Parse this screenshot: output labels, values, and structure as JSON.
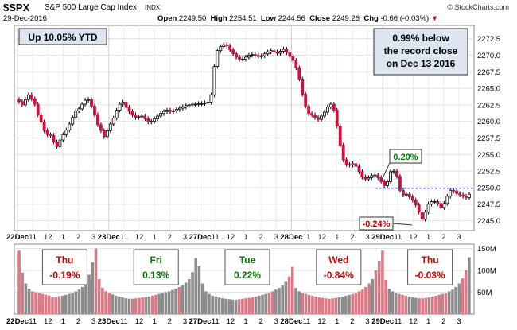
{
  "header": {
    "symbol": "$SPX",
    "name": "S&P 500 Large Cap Index",
    "exchange": "INDX",
    "watermark": "© StockCharts.com",
    "date": "29-Dec-2016",
    "open_label": "Open",
    "open": "2249.50",
    "high_label": "High",
    "high": "2254.51",
    "low_label": "Low",
    "low": "2244.56",
    "close_label": "Close",
    "close": "2249.26",
    "chg_label": "Chg",
    "chg": "-0.66 (-0.03%)",
    "chg_arrow": "▼"
  },
  "annotations": {
    "ytd": "Up 10.05% YTD",
    "record": [
      "0.99% below",
      "the record close",
      "on Dec 13 2016"
    ],
    "high_pct": "0.20%",
    "low_pct": "-0.24%"
  },
  "daily": [
    {
      "day": "Thu",
      "pct": "-0.19%",
      "color": "#cc0000"
    },
    {
      "day": "Fri",
      "pct": "0.13%",
      "color": "#007700"
    },
    {
      "day": "Tue",
      "pct": "0.22%",
      "color": "#007700"
    },
    {
      "day": "Wed",
      "pct": "-0.84%",
      "color": "#cc0000"
    },
    {
      "day": "Thu",
      "pct": "-0.03%",
      "color": "#cc0000"
    }
  ],
  "chart_data": {
    "type": "candlestick",
    "ylim": [
      2243.5,
      2274.5
    ],
    "y_ticks": [
      2245.0,
      2247.5,
      2250.0,
      2252.5,
      2255.0,
      2257.5,
      2260.0,
      2262.5,
      2265.0,
      2267.5,
      2270.0,
      2272.5
    ],
    "record_line": 2249.9,
    "x_tick_labels": [
      "22Dec",
      "11",
      "12",
      "1",
      "2",
      "3",
      "23Dec",
      "11",
      "12",
      "1",
      "2",
      "3",
      "27Dec",
      "11",
      "12",
      "1",
      "2",
      "3",
      "28Dec",
      "11",
      "12",
      "1",
      "2",
      "3",
      "29Dec",
      "11",
      "12",
      "1",
      "2",
      "3"
    ],
    "closes": [
      2263.0,
      2262.5,
      2263.3,
      2264.0,
      2263.4,
      2262.6,
      2261.0,
      2259.9,
      2258.6,
      2258.0,
      2257.9,
      2256.9,
      2256.2,
      2257.2,
      2258.0,
      2258.7,
      2259.6,
      2260.6,
      2261.6,
      2261.9,
      2262.6,
      2263.2,
      2263.3,
      2262.3,
      2261.0,
      2259.5,
      2258.6,
      2257.7,
      2258.6,
      2259.6,
      2260.5,
      2261.7,
      2262.6,
      2262.9,
      2262.1,
      2261.5,
      2261.0,
      2260.6,
      2260.7,
      2260.8,
      2260.4,
      2259.9,
      2260.0,
      2260.4,
      2260.8,
      2261.2,
      2261.5,
      2261.7,
      2261.5,
      2261.6,
      2261.8,
      2262.0,
      2262.2,
      2262.4,
      2262.5,
      2262.6,
      2262.6,
      2262.7,
      2262.7,
      2262.8,
      2262.9,
      2264.0,
      2268.3,
      2270.7,
      2271.3,
      2271.6,
      2271.4,
      2270.8,
      2270.2,
      2269.7,
      2269.4,
      2269.4,
      2269.7,
      2270.0,
      2270.1,
      2270.0,
      2269.8,
      2269.9,
      2270.2,
      2270.5,
      2270.7,
      2270.5,
      2270.3,
      2270.6,
      2270.9,
      2270.4,
      2269.8,
      2269.2,
      2268.1,
      2266.4,
      2264.1,
      2262.3,
      2261.2,
      2261.0,
      2260.6,
      2260.3,
      2260.8,
      2261.4,
      2262.2,
      2262.6,
      2261.7,
      2259.3,
      2256.4,
      2254.2,
      2253.5,
      2253.4,
      2253.6,
      2253.2,
      2252.4,
      2251.6,
      2251.3,
      2251.5,
      2251.8,
      2251.9,
      2251.5,
      2250.9,
      2250.3,
      2250.9,
      2252.4,
      2252.5,
      2251.7,
      2249.6,
      2248.9,
      2249.0,
      2248.6,
      2248.1,
      2247.4,
      2246.3,
      2245.2,
      2246.3,
      2247.5,
      2247.9,
      2247.9,
      2247.6,
      2247.0,
      2247.6,
      2248.7,
      2249.6,
      2249.5,
      2249.1,
      2248.9,
      2248.7,
      2248.5,
      2249.0
    ],
    "volume_axis": {
      "label_unit": "M",
      "ticks": [
        50,
        100,
        150
      ]
    },
    "volumes": [
      145,
      95,
      70,
      58,
      52,
      50,
      48,
      46,
      44,
      42,
      40,
      40,
      41,
      42,
      44,
      46,
      48,
      52,
      56,
      62,
      72,
      90,
      118,
      150,
      80,
      60,
      52,
      48,
      45,
      42,
      40,
      38,
      36,
      35,
      35,
      36,
      37,
      38,
      39,
      40,
      42,
      44,
      46,
      48,
      50,
      52,
      55,
      58,
      62,
      66,
      72,
      80,
      96,
      128,
      110,
      70,
      52,
      46,
      42,
      40,
      38,
      36,
      35,
      34,
      33,
      33,
      34,
      35,
      36,
      37,
      38,
      40,
      42,
      44,
      46,
      48,
      52,
      56,
      60,
      66,
      74,
      86,
      108,
      60,
      52,
      48,
      46,
      44,
      42,
      40,
      38,
      37,
      36,
      35,
      36,
      37,
      38,
      40,
      42,
      44,
      46,
      48,
      52,
      56,
      62,
      70,
      80,
      100,
      122,
      145,
      78,
      58,
      52,
      48,
      46,
      44,
      42,
      40,
      38,
      37,
      36,
      36,
      37,
      38,
      40,
      42,
      44,
      46,
      48,
      52,
      56,
      62,
      70,
      82,
      100,
      130
    ]
  }
}
